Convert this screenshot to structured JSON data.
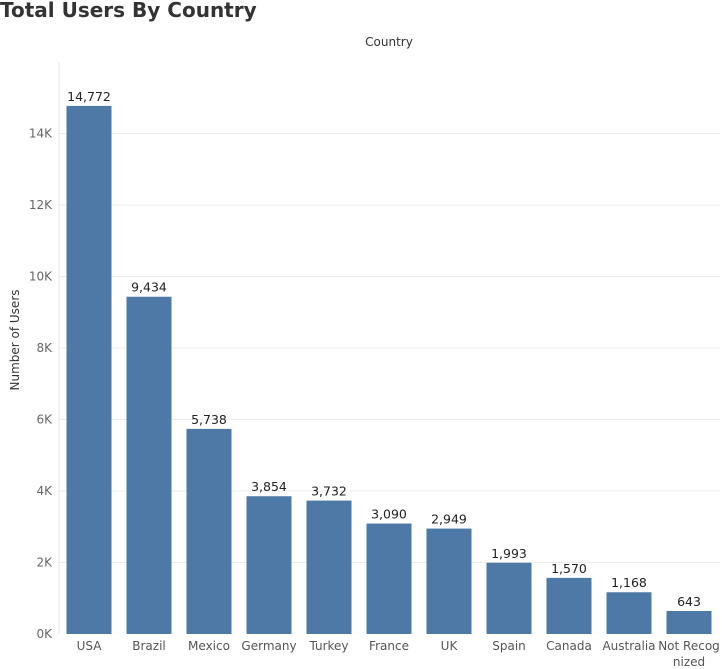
{
  "chart_data": {
    "type": "bar",
    "title": "Total Users By Country",
    "xlabel": "Country",
    "ylabel": "Number of Users",
    "categories": [
      "USA",
      "Brazil",
      "Mexico",
      "Germany",
      "Turkey",
      "France",
      "UK",
      "Spain",
      "Canada",
      "Australia",
      "Not Recognized"
    ],
    "values": [
      14772,
      9434,
      5738,
      3854,
      3732,
      3090,
      2949,
      1993,
      1570,
      1168,
      643
    ],
    "value_labels": [
      "14,772",
      "9,434",
      "5,738",
      "3,854",
      "3,732",
      "3,090",
      "2,949",
      "1,993",
      "1,570",
      "1,168",
      "643"
    ],
    "category_label_lines": [
      [
        "USA"
      ],
      [
        "Brazil"
      ],
      [
        "Mexico"
      ],
      [
        "Germany"
      ],
      [
        "Turkey"
      ],
      [
        "France"
      ],
      [
        "UK"
      ],
      [
        "Spain"
      ],
      [
        "Canada"
      ],
      [
        "Australia"
      ],
      [
        "Not Recog",
        "nized"
      ]
    ],
    "yticks": [
      0,
      2000,
      4000,
      6000,
      8000,
      10000,
      12000,
      14000
    ],
    "ytick_labels": [
      "0K",
      "2K",
      "4K",
      "6K",
      "8K",
      "10K",
      "12K",
      "14K"
    ],
    "ylim": [
      0,
      16000
    ],
    "grid": true,
    "legend": "none",
    "bar_color": "#4e79a7"
  }
}
